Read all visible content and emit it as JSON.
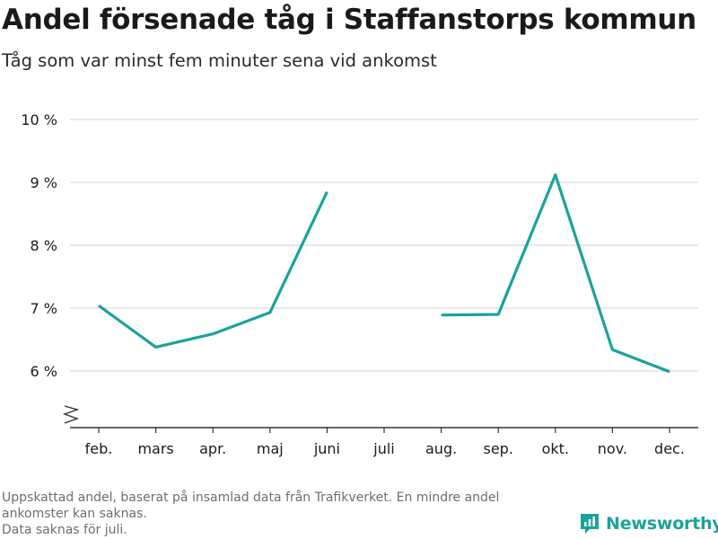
{
  "title": "Andel försenade tåg i Staffanstorps kommun",
  "subtitle": "Tåg som var minst fem minuter sena vid ankomst",
  "footnote": {
    "line1": "Uppskattad andel, baserat på insamlad data från Trafikverket. En mindre andel",
    "line2": "ankomster kan saknas.",
    "line3": "Data saknas för juli."
  },
  "brand": {
    "name": "Newsworthy",
    "icon": "newsworthy-logo-icon"
  },
  "colors": {
    "line": "#1aa39b",
    "grid": "#d9d9d9",
    "axis": "#333333",
    "text": "#1a1a1a"
  },
  "chart_data": {
    "type": "line",
    "categories": [
      "feb.",
      "mars",
      "apr.",
      "maj",
      "juni",
      "juli",
      "aug.",
      "sep.",
      "okt.",
      "nov.",
      "dec."
    ],
    "series": [
      {
        "values": [
          7.04,
          6.38,
          6.59,
          6.93,
          8.85,
          null,
          6.89,
          6.9,
          9.12,
          6.34,
          5.99
        ]
      }
    ],
    "yticks": [
      6,
      7,
      8,
      9,
      10
    ],
    "ytick_labels": [
      "6 %",
      "7 %",
      "8 %",
      "9 %",
      "10 %"
    ],
    "ylim": [
      5,
      10
    ],
    "axis_break": true,
    "grid": true,
    "xlabel": "",
    "ylabel": ""
  }
}
